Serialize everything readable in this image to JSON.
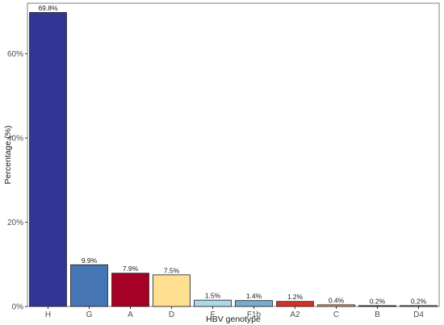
{
  "chart_data": {
    "type": "bar",
    "title": "",
    "xlabel": "HBV genotype",
    "ylabel": "Percentage (%)",
    "ylim": [
      0,
      72
    ],
    "y_ticks": [
      0,
      20,
      40,
      60
    ],
    "y_tick_labels": [
      "0%",
      "20%",
      "40%",
      "60%"
    ],
    "grid": false,
    "legend": "none",
    "categories": [
      "H",
      "G",
      "A",
      "D",
      "F",
      "F1b",
      "A2",
      "C",
      "B",
      "D4"
    ],
    "values": [
      69.8,
      9.9,
      7.9,
      7.5,
      1.5,
      1.4,
      1.2,
      0.4,
      0.2,
      0.2
    ],
    "data_labels": [
      "69.8%",
      "9.9%",
      "7.9%",
      "7.5%",
      "1.5%",
      "1.4%",
      "1.2%",
      "0.4%",
      "0.2%",
      "0.2%"
    ],
    "colors": [
      "#313695",
      "#4575b4",
      "#a50026",
      "#fee090",
      "#abd9e9",
      "#74add1",
      "#d73027",
      "#f4a460",
      "#8b4513",
      "#a9a9a9"
    ],
    "border_color": "#1a1a1a",
    "panel_border_color": "#7f7f7f"
  }
}
